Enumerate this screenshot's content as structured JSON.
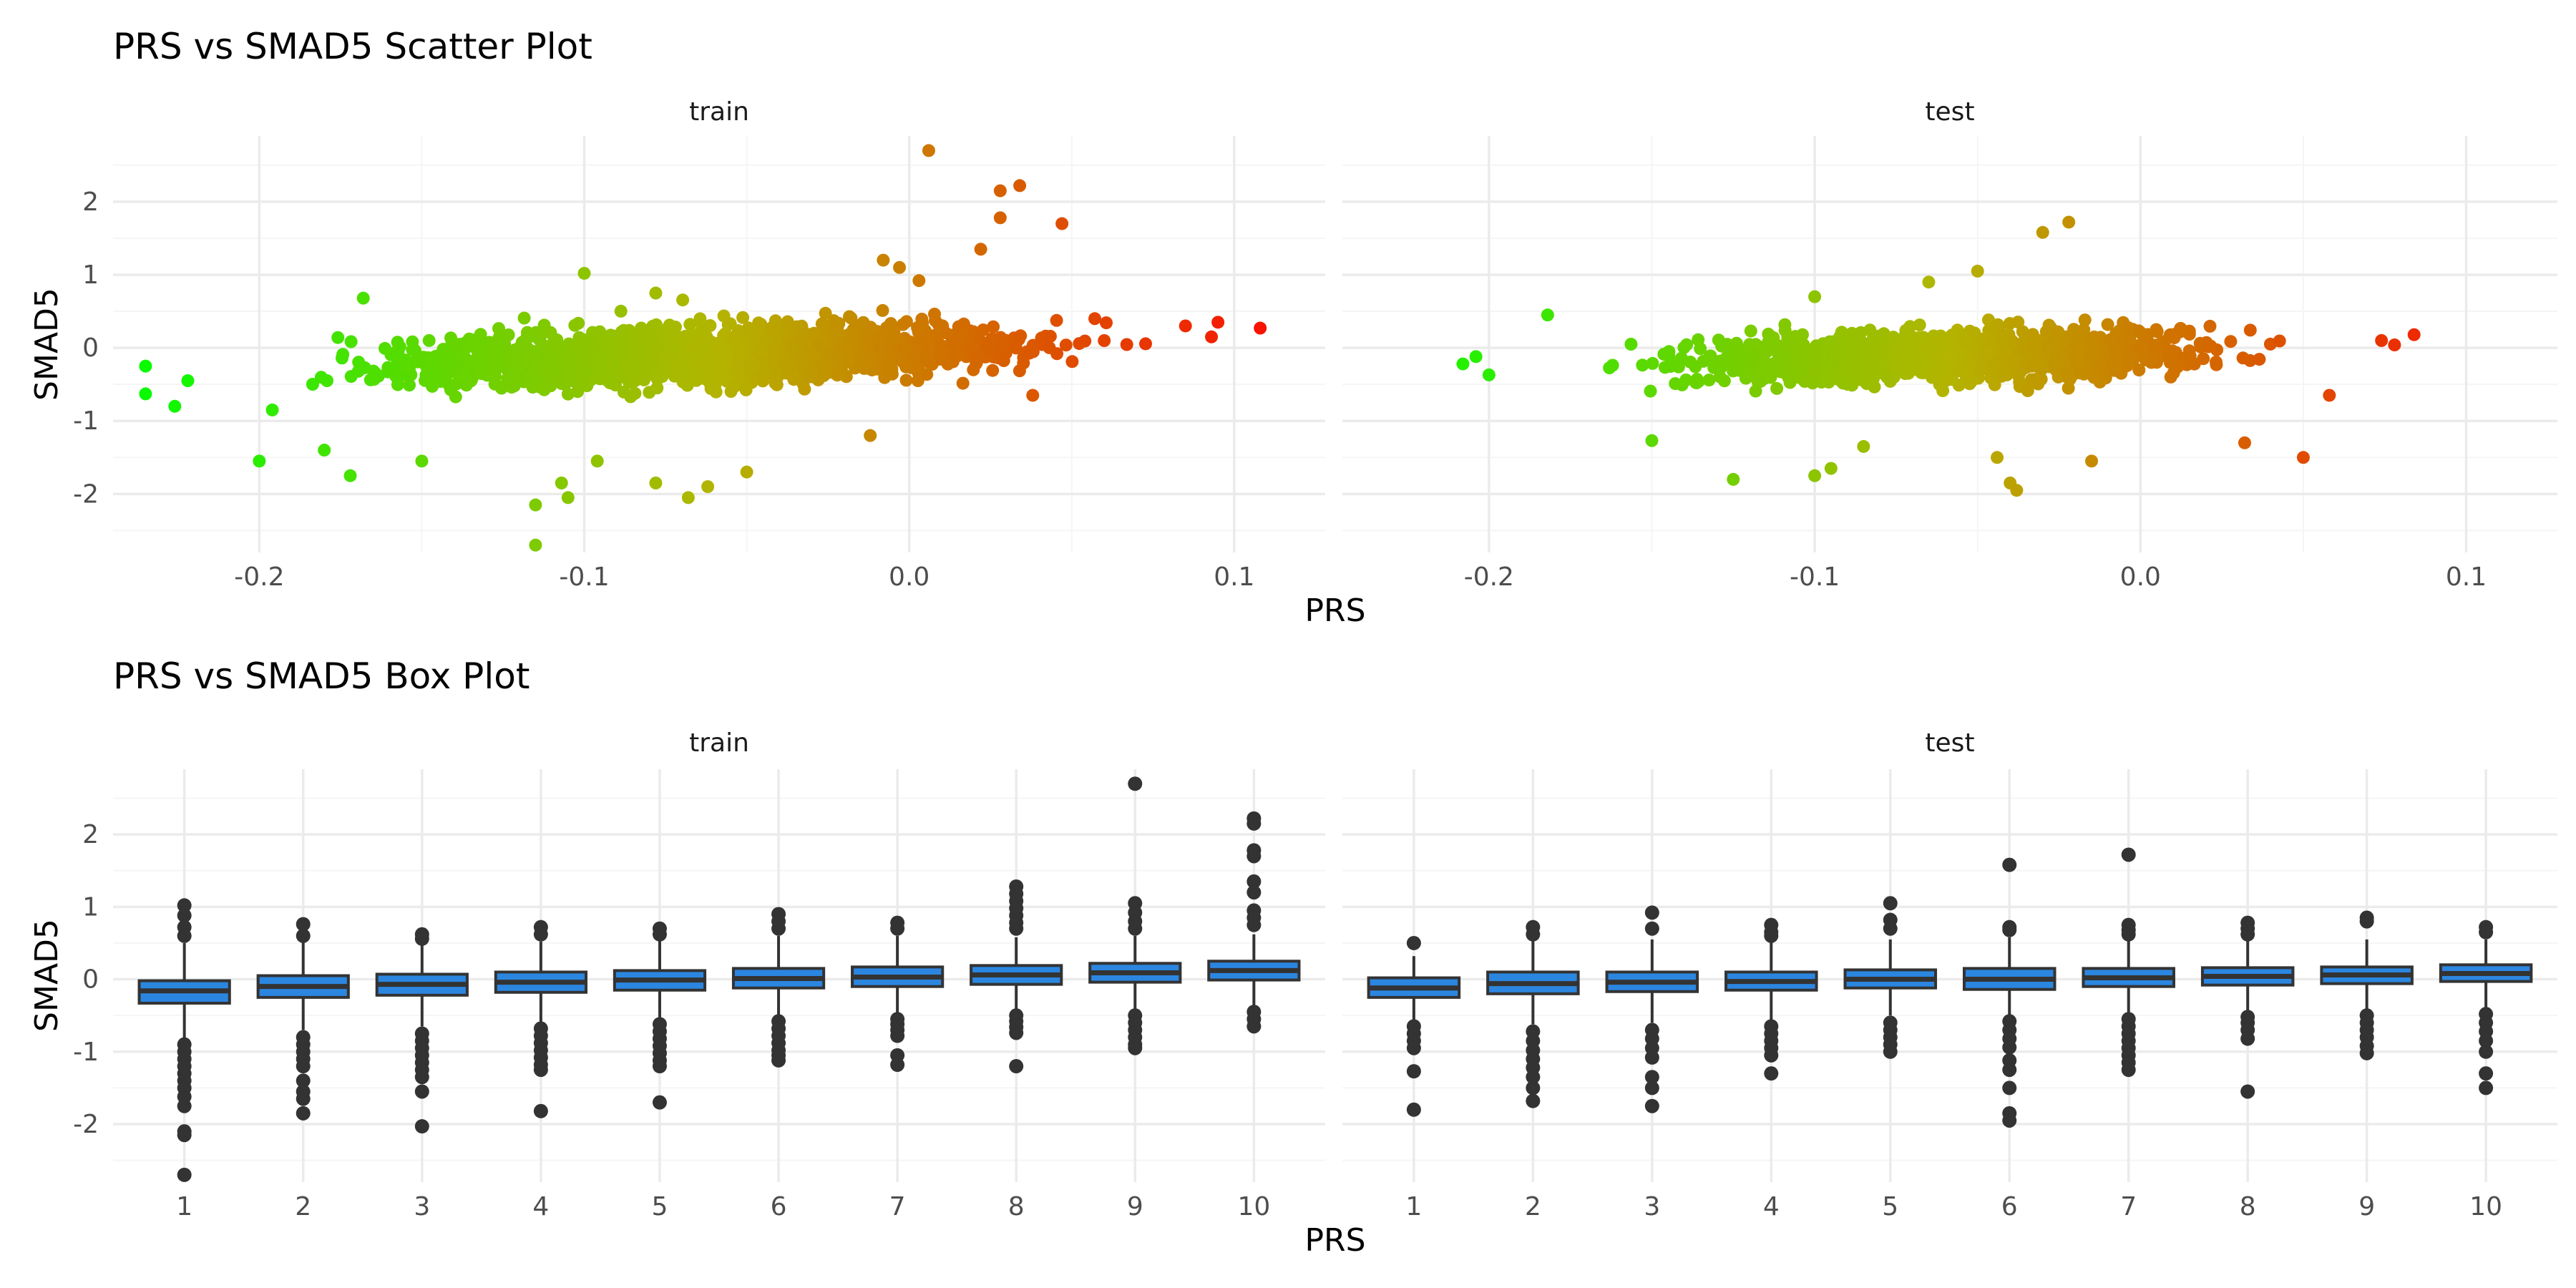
{
  "figure": {
    "title_top": "PRS vs SMAD5 Scatter Plot",
    "title_bottom": "PRS vs SMAD5 Box Plot",
    "xlabel": "PRS",
    "ylabel": "SMAD5"
  },
  "colors": {
    "gradient_low": "#00ff00",
    "gradient_mid": "#b4b400",
    "gradient_high": "#ff0000",
    "box_fill": "#2b86e0",
    "box_stroke": "#333333",
    "outlier": "#333333",
    "grid_major": "#ebebeb",
    "grid_minor": "#f5f5f5",
    "text": "#4d4d4d"
  },
  "chart_data": [
    {
      "type": "scatter",
      "title": "PRS vs SMAD5 Scatter Plot",
      "xlabel": "PRS",
      "ylabel": "SMAD5",
      "color_by": "PRS",
      "color_scale": [
        "#00ff00",
        "#ff0000"
      ],
      "legend": "none",
      "grid": true,
      "panels": [
        {
          "name": "train",
          "xlim": [
            -0.245,
            0.128
          ],
          "ylim": [
            -2.8,
            2.9
          ],
          "xticks": [
            -0.2,
            -0.1,
            0.0,
            0.1
          ],
          "xtick_labels": [
            "-0.2",
            "-0.1",
            "0.0",
            "0.1"
          ],
          "yticks": [
            -2,
            -1,
            0,
            1,
            2
          ],
          "ytick_labels": [
            "-2",
            "-1",
            "0",
            "1",
            "2"
          ],
          "cloud": {
            "n": 1800,
            "x_range": [
              -0.215,
              0.09
            ],
            "center_at_xmin": -0.33,
            "center_at_xmax": 0.12,
            "spread": 0.18
          },
          "points": [
            {
              "x": -0.235,
              "y": -0.25
            },
            {
              "x": -0.235,
              "y": -0.63
            },
            {
              "x": -0.226,
              "y": -0.8
            },
            {
              "x": -0.222,
              "y": -0.45
            },
            {
              "x": -0.2,
              "y": -1.55
            },
            {
              "x": -0.196,
              "y": -0.85
            },
            {
              "x": -0.172,
              "y": -1.75
            },
            {
              "x": -0.168,
              "y": 0.68
            },
            {
              "x": -0.18,
              "y": -1.4
            },
            {
              "x": -0.15,
              "y": -1.55
            },
            {
              "x": -0.115,
              "y": -2.7
            },
            {
              "x": -0.115,
              "y": -2.15
            },
            {
              "x": -0.107,
              "y": -1.85
            },
            {
              "x": -0.105,
              "y": -2.05
            },
            {
              "x": -0.1,
              "y": 1.02
            },
            {
              "x": -0.096,
              "y": -1.55
            },
            {
              "x": -0.078,
              "y": -1.85
            },
            {
              "x": -0.068,
              "y": -2.05
            },
            {
              "x": -0.062,
              "y": -1.9
            },
            {
              "x": -0.05,
              "y": -1.7
            },
            {
              "x": -0.078,
              "y": 0.75
            },
            {
              "x": -0.012,
              "y": -1.2
            },
            {
              "x": -0.008,
              "y": 1.2
            },
            {
              "x": -0.003,
              "y": 1.1
            },
            {
              "x": 0.003,
              "y": 0.92
            },
            {
              "x": 0.006,
              "y": 2.7
            },
            {
              "x": 0.022,
              "y": 1.35
            },
            {
              "x": 0.028,
              "y": 2.15
            },
            {
              "x": 0.034,
              "y": 2.22
            },
            {
              "x": 0.028,
              "y": 1.78
            },
            {
              "x": 0.047,
              "y": 1.7
            },
            {
              "x": 0.085,
              "y": 0.3
            },
            {
              "x": 0.095,
              "y": 0.35
            },
            {
              "x": 0.093,
              "y": 0.15
            },
            {
              "x": 0.108,
              "y": 0.27
            },
            {
              "x": 0.038,
              "y": -0.65
            }
          ]
        },
        {
          "name": "test",
          "xlim": [
            -0.245,
            0.128
          ],
          "ylim": [
            -2.8,
            2.9
          ],
          "xticks": [
            -0.2,
            -0.1,
            0.0,
            0.1
          ],
          "xtick_labels": [
            "-0.2",
            "-0.1",
            "0.0",
            "0.1"
          ],
          "yticks": [
            -2,
            -1,
            0,
            1,
            2
          ],
          "ytick_labels": [
            "-2",
            "-1",
            "0",
            "1",
            "2"
          ],
          "cloud": {
            "n": 1200,
            "x_range": [
              -0.19,
              0.07
            ],
            "center_at_xmin": -0.28,
            "center_at_xmax": 0.08,
            "spread": 0.17
          },
          "points": [
            {
              "x": -0.208,
              "y": -0.22
            },
            {
              "x": -0.204,
              "y": -0.12
            },
            {
              "x": -0.2,
              "y": -0.37
            },
            {
              "x": -0.182,
              "y": 0.45
            },
            {
              "x": -0.15,
              "y": -1.27
            },
            {
              "x": -0.125,
              "y": -1.8
            },
            {
              "x": -0.1,
              "y": 0.7
            },
            {
              "x": -0.1,
              "y": -1.75
            },
            {
              "x": -0.095,
              "y": -1.65
            },
            {
              "x": -0.085,
              "y": -1.35
            },
            {
              "x": -0.065,
              "y": 0.9
            },
            {
              "x": -0.05,
              "y": 1.05
            },
            {
              "x": -0.044,
              "y": -1.5
            },
            {
              "x": -0.04,
              "y": -1.85
            },
            {
              "x": -0.038,
              "y": -1.95
            },
            {
              "x": -0.03,
              "y": 1.58
            },
            {
              "x": -0.022,
              "y": 1.72
            },
            {
              "x": -0.015,
              "y": -1.55
            },
            {
              "x": 0.032,
              "y": -1.3
            },
            {
              "x": 0.05,
              "y": -1.5
            },
            {
              "x": 0.058,
              "y": -0.65
            },
            {
              "x": 0.074,
              "y": 0.1
            },
            {
              "x": 0.078,
              "y": 0.04
            },
            {
              "x": 0.084,
              "y": 0.18
            }
          ]
        }
      ]
    },
    {
      "type": "box",
      "title": "PRS vs SMAD5 Box Plot",
      "xlabel": "PRS",
      "ylabel": "SMAD5",
      "legend": "none",
      "grid": true,
      "categories": [
        "1",
        "2",
        "3",
        "4",
        "5",
        "6",
        "7",
        "8",
        "9",
        "10"
      ],
      "panels": [
        {
          "name": "train",
          "ylim": [
            -2.8,
            2.9
          ],
          "yticks": [
            -2,
            -1,
            0,
            1,
            2
          ],
          "ytick_labels": [
            "-2",
            "-1",
            "0",
            "1",
            "2"
          ],
          "boxes": [
            {
              "q1": -0.33,
              "median": -0.16,
              "q3": -0.02,
              "whisker_low": -0.82,
              "whisker_high": 0.5,
              "outliers": [
                1.02,
                0.88,
                0.72,
                0.6,
                -0.9,
                -1.0,
                -1.1,
                -1.2,
                -1.3,
                -1.4,
                -1.5,
                -1.62,
                -1.75,
                -2.1,
                -2.15,
                -2.7
              ]
            },
            {
              "q1": -0.25,
              "median": -0.1,
              "q3": 0.05,
              "whisker_low": -0.7,
              "whisker_high": 0.55,
              "outliers": [
                0.76,
                0.6,
                -0.8,
                -0.9,
                -1.0,
                -1.1,
                -1.2,
                -1.4,
                -1.55,
                -1.65,
                -1.85
              ]
            },
            {
              "q1": -0.22,
              "median": -0.07,
              "q3": 0.07,
              "whisker_low": -0.65,
              "whisker_high": 0.5,
              "outliers": [
                0.62,
                0.56,
                -0.75,
                -0.85,
                -0.95,
                -1.05,
                -1.15,
                -1.25,
                -1.35,
                -1.55,
                -2.03
              ]
            },
            {
              "q1": -0.18,
              "median": -0.04,
              "q3": 0.1,
              "whisker_low": -0.6,
              "whisker_high": 0.52,
              "outliers": [
                0.72,
                0.62,
                -0.68,
                -0.78,
                -0.88,
                -0.98,
                -1.08,
                -1.18,
                -1.25,
                -1.82
              ]
            },
            {
              "q1": -0.15,
              "median": -0.01,
              "q3": 0.12,
              "whisker_low": -0.56,
              "whisker_high": 0.55,
              "outliers": [
                0.7,
                0.62,
                -0.62,
                -0.72,
                -0.82,
                -0.92,
                -1.02,
                -1.12,
                -1.2,
                -1.7
              ]
            },
            {
              "q1": -0.12,
              "median": 0.01,
              "q3": 0.15,
              "whisker_low": -0.52,
              "whisker_high": 0.6,
              "outliers": [
                0.9,
                0.8,
                0.7,
                -0.58,
                -0.68,
                -0.78,
                -0.88,
                -0.98,
                -1.05,
                -1.12
              ]
            },
            {
              "q1": -0.1,
              "median": 0.03,
              "q3": 0.17,
              "whisker_low": -0.48,
              "whisker_high": 0.6,
              "outliers": [
                0.78,
                0.7,
                -0.55,
                -0.62,
                -0.7,
                -0.78,
                -1.05,
                -1.18
              ]
            },
            {
              "q1": -0.07,
              "median": 0.06,
              "q3": 0.19,
              "whisker_low": -0.44,
              "whisker_high": 0.58,
              "outliers": [
                1.28,
                1.18,
                1.08,
                0.98,
                0.88,
                0.78,
                0.7,
                -0.5,
                -0.58,
                -0.66,
                -0.74,
                -1.2
              ]
            },
            {
              "q1": -0.04,
              "median": 0.09,
              "q3": 0.22,
              "whisker_low": -0.42,
              "whisker_high": 0.6,
              "outliers": [
                2.7,
                1.05,
                0.92,
                0.8,
                0.7,
                -0.5,
                -0.6,
                -0.7,
                -0.8,
                -0.9,
                -0.95
              ]
            },
            {
              "q1": -0.01,
              "median": 0.12,
              "q3": 0.25,
              "whisker_low": -0.38,
              "whisker_high": 0.62,
              "outliers": [
                2.22,
                2.15,
                1.78,
                1.7,
                1.35,
                1.2,
                0.95,
                0.85,
                0.75,
                -0.45,
                -0.55,
                -0.65
              ]
            }
          ]
        },
        {
          "name": "test",
          "ylim": [
            -2.8,
            2.9
          ],
          "yticks": [
            -2,
            -1,
            0,
            1,
            2
          ],
          "ytick_labels": [
            "-2",
            "-1",
            "0",
            "1",
            "2"
          ],
          "boxes": [
            {
              "q1": -0.25,
              "median": -0.12,
              "q3": 0.02,
              "whisker_low": -0.58,
              "whisker_high": 0.32,
              "outliers": [
                0.5,
                -0.65,
                -0.75,
                -0.85,
                -0.95,
                -1.27,
                -1.8
              ]
            },
            {
              "q1": -0.2,
              "median": -0.06,
              "q3": 0.1,
              "whisker_low": -0.62,
              "whisker_high": 0.55,
              "outliers": [
                0.72,
                0.62,
                -0.72,
                -0.85,
                -0.98,
                -1.1,
                -1.22,
                -1.35,
                -1.5,
                -1.68
              ]
            },
            {
              "q1": -0.17,
              "median": -0.04,
              "q3": 0.1,
              "whisker_low": -0.6,
              "whisker_high": 0.55,
              "outliers": [
                0.92,
                0.7,
                -0.7,
                -0.82,
                -0.95,
                -1.08,
                -1.35,
                -1.5,
                -1.75
              ]
            },
            {
              "q1": -0.15,
              "median": -0.03,
              "q3": 0.1,
              "whisker_low": -0.56,
              "whisker_high": 0.55,
              "outliers": [
                0.75,
                0.65,
                0.6,
                -0.65,
                -0.75,
                -0.85,
                -0.95,
                -1.05,
                -1.3
              ]
            },
            {
              "q1": -0.12,
              "median": 0.0,
              "q3": 0.13,
              "whisker_low": -0.5,
              "whisker_high": 0.55,
              "outliers": [
                1.05,
                0.82,
                0.7,
                -0.6,
                -0.7,
                -0.8,
                -0.9,
                -1.0
              ]
            },
            {
              "q1": -0.14,
              "median": 0.0,
              "q3": 0.15,
              "whisker_low": -0.52,
              "whisker_high": 0.58,
              "outliers": [
                1.58,
                0.72,
                0.68,
                -0.58,
                -0.7,
                -0.82,
                -0.94,
                -1.12,
                -1.25,
                -1.5,
                -1.85,
                -1.95
              ]
            },
            {
              "q1": -0.1,
              "median": 0.02,
              "q3": 0.15,
              "whisker_low": -0.48,
              "whisker_high": 0.55,
              "outliers": [
                1.72,
                0.75,
                0.68,
                0.62,
                -0.55,
                -0.65,
                -0.75,
                -0.85,
                -0.95,
                -1.05,
                -1.15,
                -1.25
              ]
            },
            {
              "q1": -0.08,
              "median": 0.04,
              "q3": 0.16,
              "whisker_low": -0.45,
              "whisker_high": 0.55,
              "outliers": [
                0.78,
                0.7,
                0.62,
                -0.52,
                -0.6,
                -0.7,
                -0.82,
                -1.55
              ]
            },
            {
              "q1": -0.06,
              "median": 0.06,
              "q3": 0.17,
              "whisker_low": -0.42,
              "whisker_high": 0.55,
              "outliers": [
                0.85,
                0.8,
                -0.5,
                -0.6,
                -0.7,
                -0.8,
                -0.92,
                -1.02
              ]
            },
            {
              "q1": -0.03,
              "median": 0.08,
              "q3": 0.2,
              "whisker_low": -0.4,
              "whisker_high": 0.55,
              "outliers": [
                0.72,
                0.65,
                -0.48,
                -0.6,
                -0.72,
                -0.85,
                -1.0,
                -1.3,
                -1.5
              ]
            }
          ]
        }
      ]
    }
  ]
}
